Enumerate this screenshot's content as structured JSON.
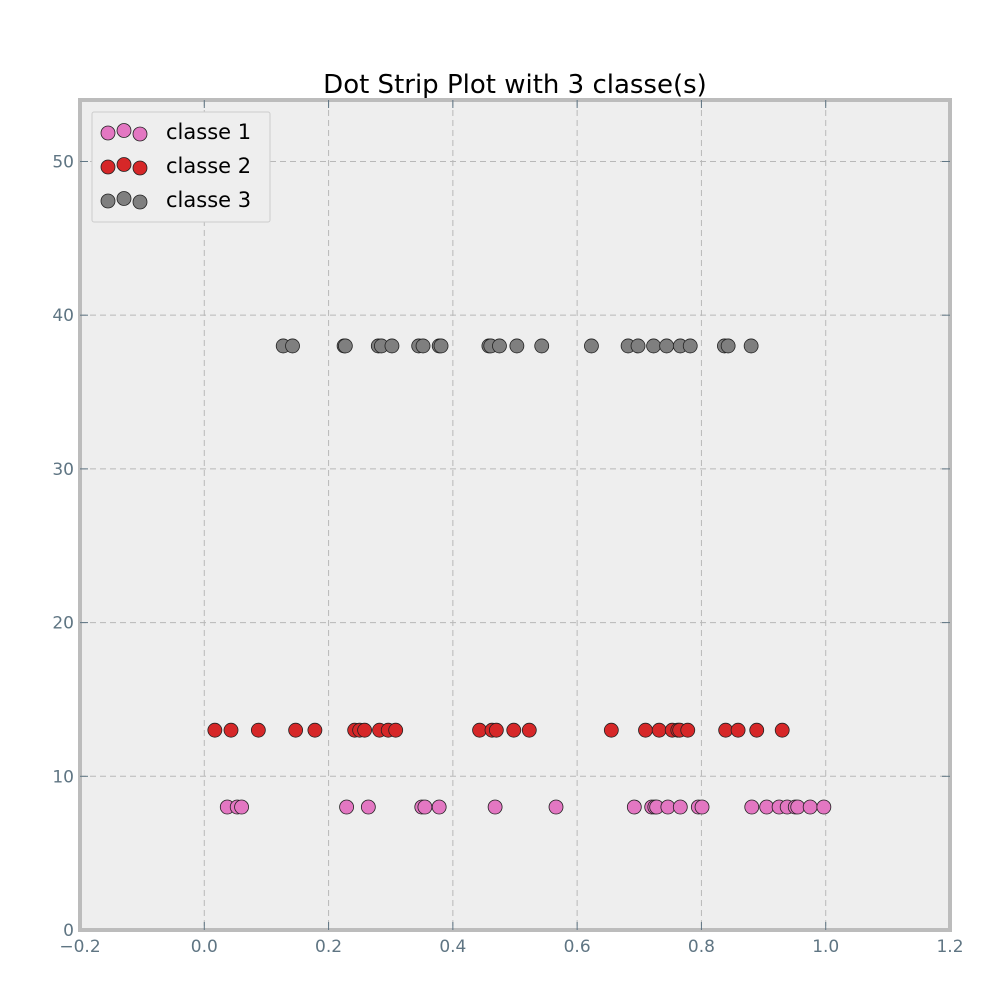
{
  "chart_data": {
    "type": "scatter",
    "title": "Dot Strip Plot with 3 classe(s)",
    "xlabel": "",
    "ylabel": "",
    "xlim": [
      -0.2,
      1.2
    ],
    "ylim": [
      0,
      54
    ],
    "x_ticks": [
      -0.2,
      0.0,
      0.2,
      0.4,
      0.6,
      0.8,
      1.0,
      1.2
    ],
    "x_tick_labels": [
      "−0.2",
      "0.0",
      "0.2",
      "0.4",
      "0.6",
      "0.8",
      "1.0",
      "1.2"
    ],
    "y_ticks": [
      0,
      10,
      20,
      30,
      40,
      50
    ],
    "y_tick_labels": [
      "0",
      "10",
      "20",
      "30",
      "40",
      "50"
    ],
    "grid": true,
    "legend_position": "top-left",
    "background_color": "#eeeeee",
    "series": [
      {
        "name": "classe 1",
        "color": "#e377c2",
        "y": 8,
        "x": [
          0.037,
          0.053,
          0.06,
          0.229,
          0.264,
          0.35,
          0.355,
          0.378,
          0.468,
          0.566,
          0.692,
          0.72,
          0.725,
          0.728,
          0.746,
          0.766,
          0.795,
          0.801,
          0.881,
          0.905,
          0.925,
          0.938,
          0.951,
          0.955,
          0.975,
          0.997
        ]
      },
      {
        "name": "classe 2",
        "color": "#d62728",
        "y": 13,
        "x": [
          0.017,
          0.043,
          0.087,
          0.147,
          0.178,
          0.242,
          0.25,
          0.258,
          0.282,
          0.296,
          0.308,
          0.443,
          0.463,
          0.47,
          0.498,
          0.523,
          0.655,
          0.71,
          0.732,
          0.753,
          0.762,
          0.765,
          0.778,
          0.839,
          0.859,
          0.889,
          0.93
        ]
      },
      {
        "name": "classe 3",
        "color": "#7f7f7f",
        "y": 38,
        "x": [
          0.127,
          0.142,
          0.225,
          0.227,
          0.28,
          0.285,
          0.302,
          0.345,
          0.352,
          0.378,
          0.381,
          0.458,
          0.461,
          0.475,
          0.503,
          0.543,
          0.623,
          0.682,
          0.698,
          0.723,
          0.744,
          0.766,
          0.782,
          0.837,
          0.843,
          0.88
        ]
      }
    ]
  }
}
